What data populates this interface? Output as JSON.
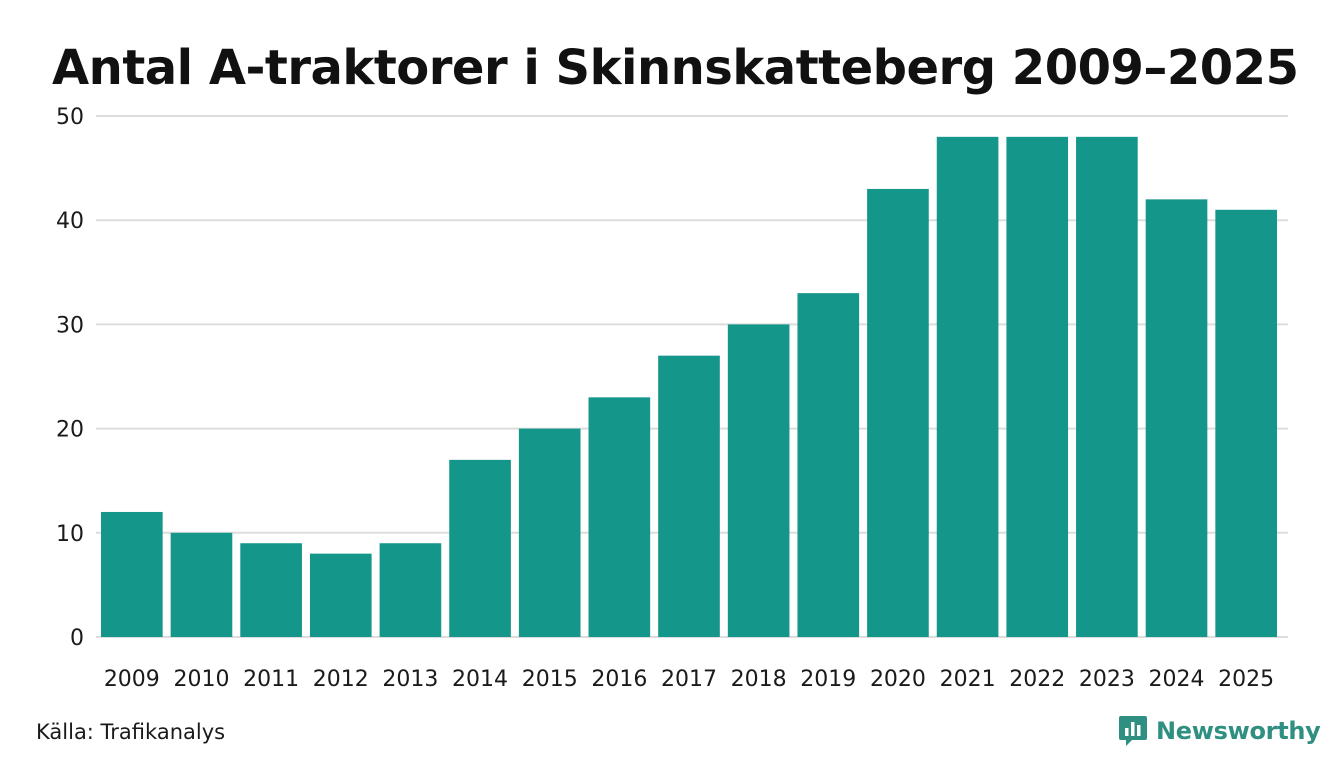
{
  "chart_data": {
    "type": "bar",
    "title": "Antal A-traktorer i Skinnskatteberg 2009–2025",
    "categories": [
      "2009",
      "2010",
      "2011",
      "2012",
      "2013",
      "2014",
      "2015",
      "2016",
      "2017",
      "2018",
      "2019",
      "2020",
      "2021",
      "2022",
      "2023",
      "2024",
      "2025"
    ],
    "values": [
      12,
      10,
      9,
      8,
      9,
      17,
      20,
      23,
      27,
      30,
      33,
      43,
      48,
      48,
      48,
      42,
      41
    ],
    "ylim": [
      0,
      50
    ],
    "yticks": [
      0,
      10,
      20,
      30,
      40,
      50
    ],
    "xlabel": "",
    "ylabel": "",
    "grid": true,
    "bar_color": "#14968a",
    "grid_color": "#dddddd"
  },
  "footer": {
    "source": "Källa: Trafikanalys",
    "brand": "Newsworthy",
    "brand_color": "#2f8f80"
  },
  "icons": {
    "brand_logo": "newsworthy-logo-icon"
  }
}
